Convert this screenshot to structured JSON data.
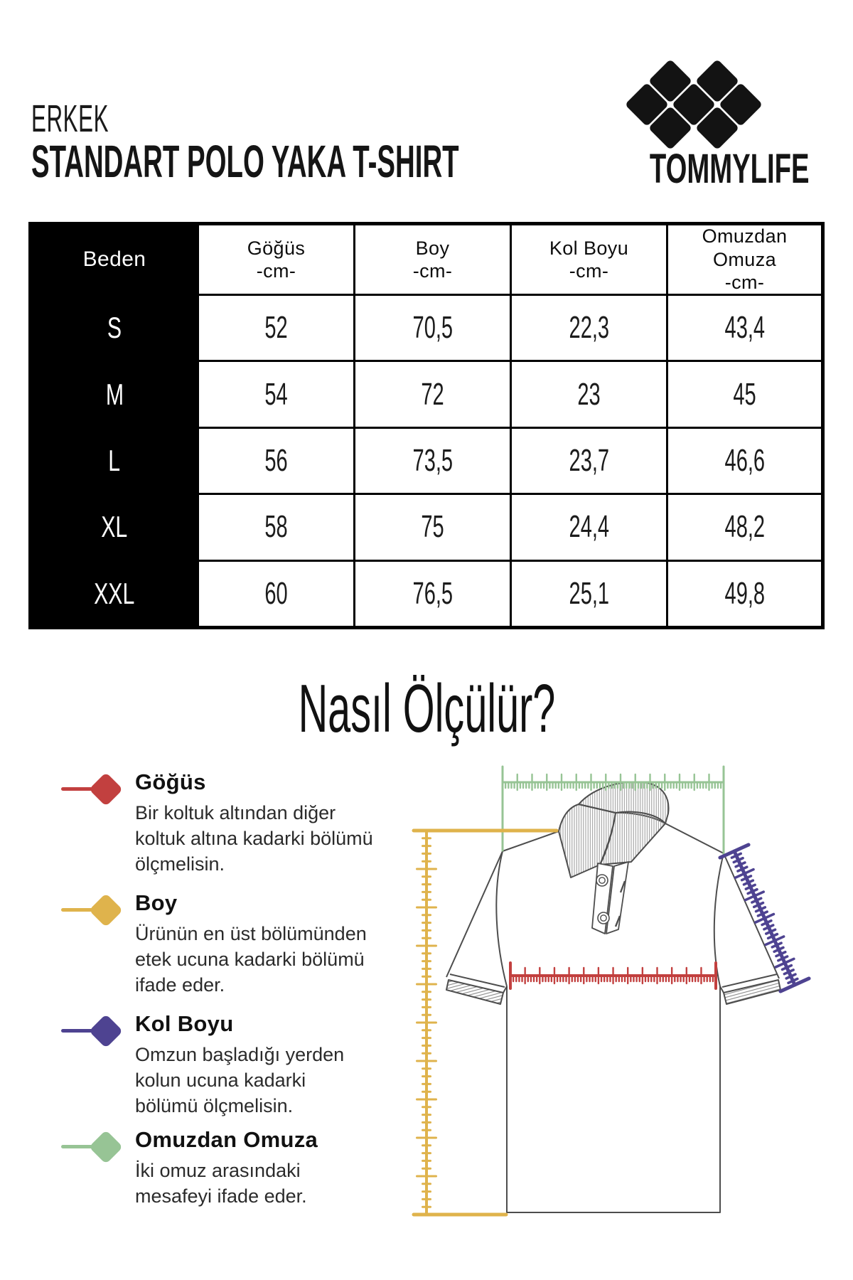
{
  "header": {
    "category": "ERKEK",
    "product_title": "STANDART POLO YAKA T-SHIRT",
    "brand": "TOMMYLIFE"
  },
  "size_table": {
    "columns": [
      {
        "lines": [
          "Beden"
        ]
      },
      {
        "lines": [
          "Göğüs",
          "-cm-"
        ]
      },
      {
        "lines": [
          "Boy",
          "-cm-"
        ]
      },
      {
        "lines": [
          "Kol Boyu",
          "-cm-"
        ]
      },
      {
        "lines": [
          "Omuzdan",
          "Omuza",
          "-cm-"
        ]
      }
    ],
    "rows": [
      {
        "size": "S",
        "values": [
          "52",
          "70,5",
          "22,3",
          "43,4"
        ]
      },
      {
        "size": "M",
        "values": [
          "54",
          "72",
          "23",
          "45"
        ]
      },
      {
        "size": "L",
        "values": [
          "56",
          "73,5",
          "23,7",
          "46,6"
        ]
      },
      {
        "size": "XL",
        "values": [
          "58",
          "75",
          "24,4",
          "48,2"
        ]
      },
      {
        "size": "XXL",
        "values": [
          "60",
          "76,5",
          "25,1",
          "49,8"
        ]
      }
    ]
  },
  "how_to_measure": {
    "title": "Nasıl Ölçülür?",
    "items": [
      {
        "name": "Göğüs",
        "color": "#c2403f",
        "description_lines": [
          "Bir koltuk altından diğer",
          "koltuk altına kadarki bölümü",
          "ölçmelisin."
        ]
      },
      {
        "name": "Boy",
        "color": "#dfb34c",
        "description_lines": [
          "Ürünün en üst bölümünden",
          "etek ucuna kadarki bölümü",
          "ifade eder."
        ]
      },
      {
        "name": "Kol Boyu",
        "color": "#4e4391",
        "description_lines": [
          "Omzun başladığı yerden",
          "kolun ucuna kadarki",
          "bölümü ölçmelisin."
        ]
      },
      {
        "name": "Omuzdan Omuza",
        "color": "#97c495",
        "description_lines": [
          "İki omuz arasındaki",
          "mesafeyi ifade eder."
        ]
      }
    ]
  }
}
